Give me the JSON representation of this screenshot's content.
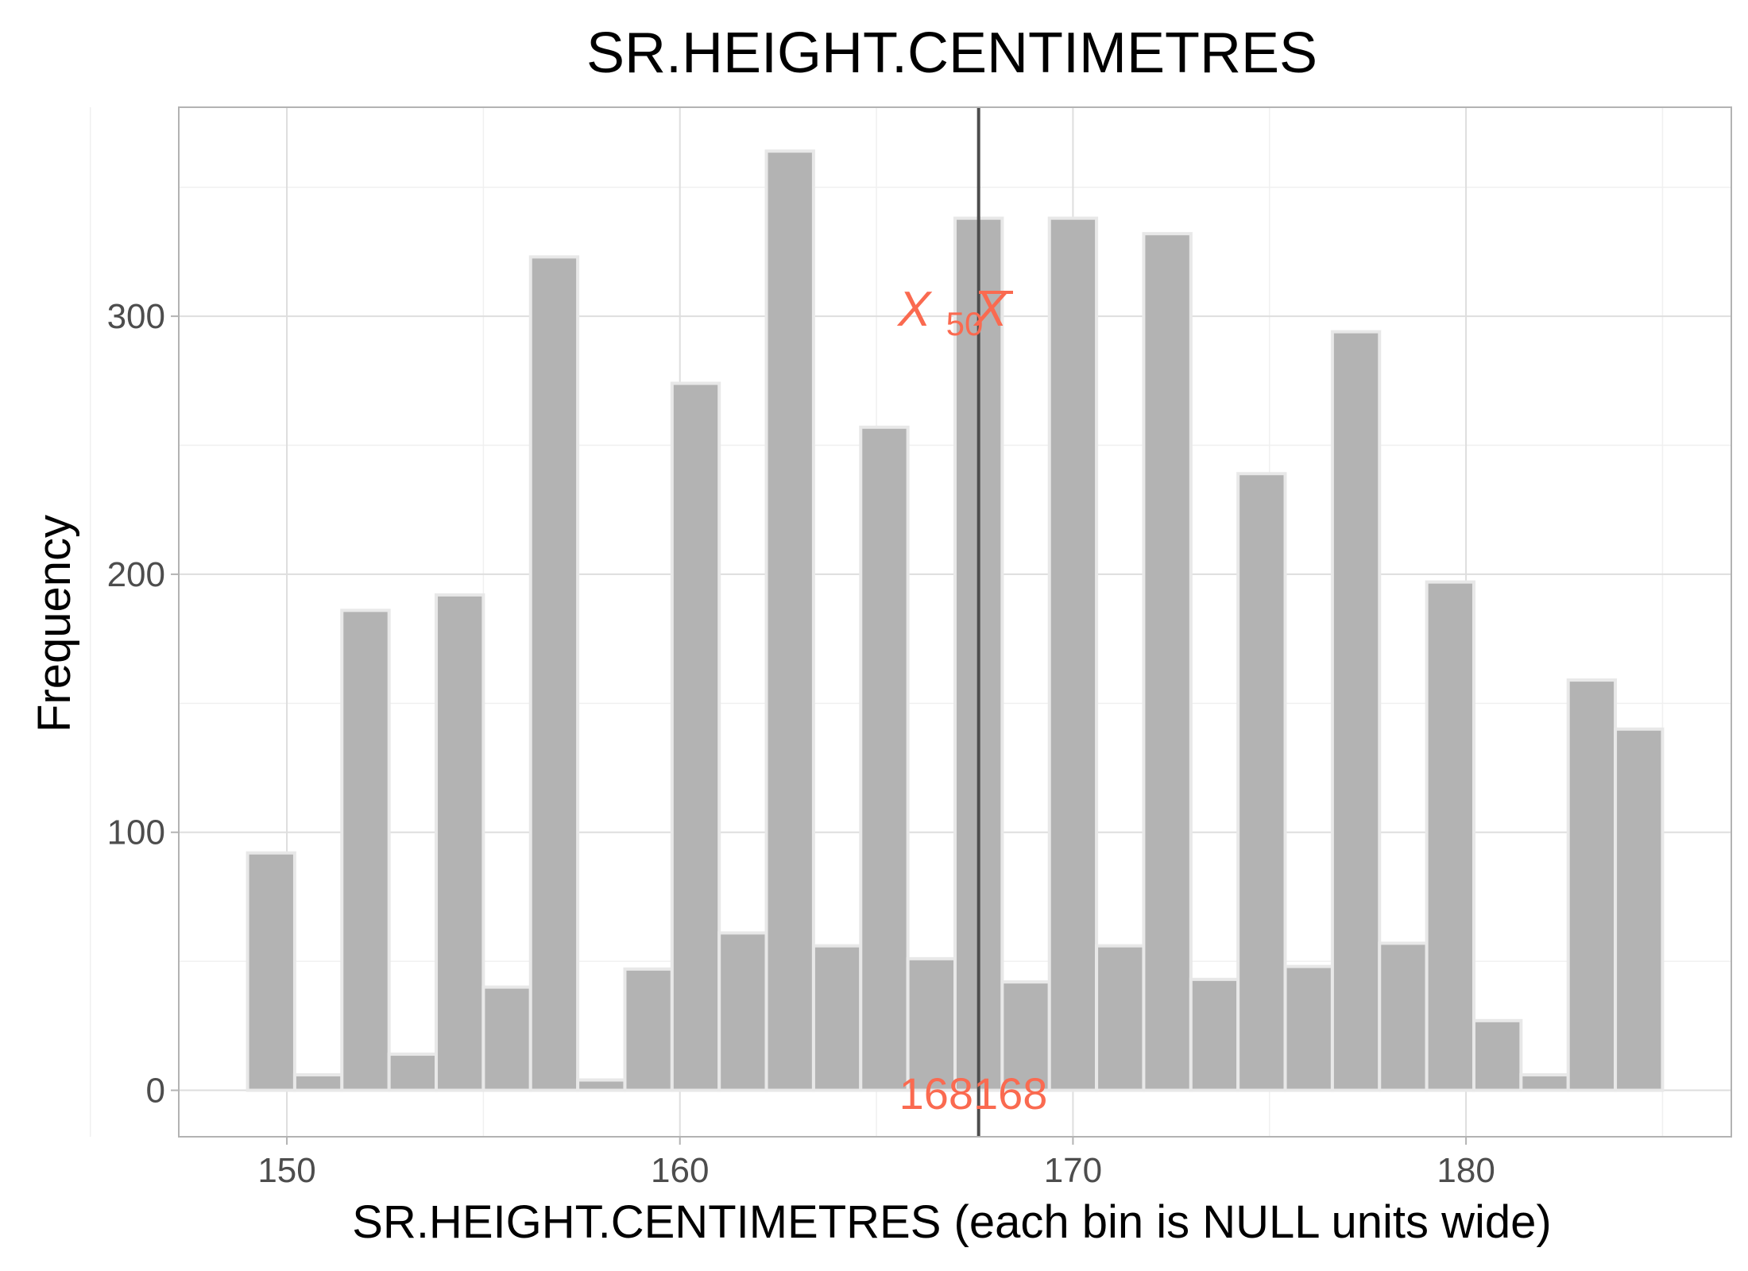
{
  "chart_data": {
    "type": "bar",
    "title": "SR.HEIGHT.CENTIMETRES",
    "xlabel": "SR.HEIGHT.CENTIMETRES (each bin is NULL units wide)",
    "ylabel": "Frequency",
    "xlim": [
      147.25,
      186.75
    ],
    "ylim": [
      -18,
      381
    ],
    "x_ticks": [
      150,
      160,
      170,
      180
    ],
    "y_ticks": [
      0,
      100,
      200,
      300
    ],
    "bin_width": 1.2,
    "bins": [
      {
        "center": 149.6,
        "value": 92
      },
      {
        "center": 150.8,
        "value": 6
      },
      {
        "center": 152.0,
        "value": 186
      },
      {
        "center": 153.2,
        "value": 14
      },
      {
        "center": 154.4,
        "value": 192
      },
      {
        "center": 155.6,
        "value": 40
      },
      {
        "center": 156.8,
        "value": 323
      },
      {
        "center": 158.0,
        "value": 4
      },
      {
        "center": 159.2,
        "value": 47
      },
      {
        "center": 160.4,
        "value": 274
      },
      {
        "center": 161.6,
        "value": 61
      },
      {
        "center": 162.8,
        "value": 364
      },
      {
        "center": 164.0,
        "value": 56
      },
      {
        "center": 165.2,
        "value": 257
      },
      {
        "center": 166.4,
        "value": 51
      },
      {
        "center": 167.6,
        "value": 338
      },
      {
        "center": 168.8,
        "value": 42
      },
      {
        "center": 170.0,
        "value": 338
      },
      {
        "center": 171.2,
        "value": 56
      },
      {
        "center": 172.4,
        "value": 332
      },
      {
        "center": 173.6,
        "value": 43
      },
      {
        "center": 174.8,
        "value": 239
      },
      {
        "center": 176.0,
        "value": 48
      },
      {
        "center": 177.2,
        "value": 294
      },
      {
        "center": 178.4,
        "value": 57
      },
      {
        "center": 179.6,
        "value": 197
      },
      {
        "center": 180.8,
        "value": 27
      },
      {
        "center": 182.0,
        "value": 6
      },
      {
        "center": 183.2,
        "value": 159
      },
      {
        "center": 184.4,
        "value": 140
      }
    ],
    "reference_line": {
      "x": 167.6,
      "color": "#4d4d4d"
    },
    "annotations": {
      "median_symbol": "X",
      "median_subscript": "50",
      "mean_symbol": "X",
      "value_labels": "168168",
      "color": "#fa6a50"
    },
    "colors": {
      "bar_fill": "#b3b3b3",
      "bar_stroke": "#e8e8e8",
      "grid_major": "#dedede",
      "grid_minor": "#f0f0f0",
      "panel_border": "#b3b3b3"
    },
    "grid": true,
    "legend": "none"
  }
}
